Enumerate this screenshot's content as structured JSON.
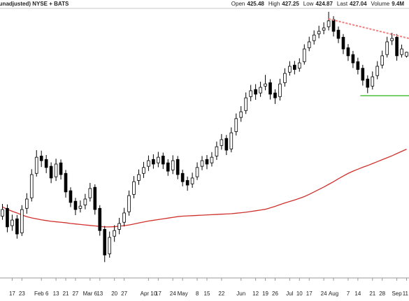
{
  "chart_data": {
    "type": "candlestick",
    "source_note": "(unadjusted) NYSE + BATS",
    "stats": [
      {
        "label": "Open",
        "value": "425.48"
      },
      {
        "label": "High",
        "value": "427.25"
      },
      {
        "label": "Low",
        "value": "424.87"
      },
      {
        "label": "Last",
        "value": "427.04"
      },
      {
        "label": "Volume",
        "value": "9.4M"
      }
    ],
    "categories": [
      null,
      null,
      "17",
      null,
      "23",
      null,
      null,
      null,
      "Feb 6",
      null,
      null,
      "13",
      null,
      "21",
      null,
      "27",
      null,
      null,
      "Mar 6",
      null,
      "13",
      null,
      null,
      "20",
      null,
      "27",
      null,
      null,
      null,
      null,
      "Apr 10",
      null,
      "17",
      null,
      null,
      "24",
      null,
      "May",
      null,
      null,
      "8",
      null,
      "15",
      null,
      null,
      "22",
      null,
      null,
      null,
      "Jun",
      null,
      null,
      "12",
      null,
      "19",
      null,
      "26",
      null,
      null,
      "Jul",
      null,
      "10",
      null,
      "17",
      null,
      null,
      "24",
      null,
      "Aug",
      null,
      null,
      "7",
      null,
      "14",
      null,
      null,
      "21",
      null,
      "28",
      null,
      null,
      "Sep",
      null,
      "11"
    ],
    "candles": {
      "up_color": "#ffffff",
      "down_color": "#000000",
      "edge_color": "#000000",
      "open": [
        360.0,
        363.2,
        356.1,
        358.9,
        353.2,
        363.2,
        367.5,
        377.5,
        384.6,
        383.2,
        380.4,
        376.1,
        381.8,
        377.5,
        370.4,
        366.1,
        363.2,
        364.6,
        367.5,
        371.8,
        363.2,
        354.6,
        344.6,
        351.8,
        354.6,
        357.5,
        361.8,
        368.9,
        374.6,
        377.5,
        380.4,
        383.2,
        381.8,
        384.6,
        381.8,
        378.9,
        383.2,
        377.5,
        374.6,
        373.2,
        376.1,
        380.4,
        383.2,
        381.8,
        384.6,
        388.9,
        391.8,
        387.5,
        394.6,
        400.4,
        403.2,
        408.9,
        411.8,
        410.4,
        413.2,
        414.6,
        410.4,
        408.9,
        414.6,
        418.9,
        421.8,
        420.5,
        423.2,
        428.9,
        431.8,
        434.6,
        436.1,
        437.5,
        440.4,
        436.1,
        433.2,
        428.9,
        426.1,
        423.2,
        420.5,
        416.1,
        413.2,
        417.5,
        421.8,
        426.1,
        431.8,
        433.2,
        426.1,
        425.48
      ],
      "high": [
        365.0,
        364.8,
        360.6,
        360.5,
        364.5,
        369.4,
        379.2,
        387.0,
        386.8,
        385.0,
        382.0,
        383.5,
        383.2,
        378.9,
        371.8,
        367.5,
        366.4,
        369.1,
        373.6,
        373.0,
        364.5,
        356.0,
        353.7,
        356.3,
        359.3,
        363.4,
        370.5,
        376.4,
        379.1,
        382.2,
        384.8,
        385.3,
        386.3,
        386.0,
        383.3,
        384.9,
        384.6,
        379.0,
        376.2,
        377.8,
        382.0,
        384.6,
        385.0,
        386.2,
        390.5,
        393.6,
        393.2,
        396.3,
        402.0,
        405.0,
        410.6,
        413.7,
        414.0,
        415.0,
        417.8,
        416.0,
        411.9,
        416.2,
        420.5,
        423.4,
        423.5,
        424.6,
        430.3,
        433.4,
        436.0,
        437.9,
        439.3,
        443.6,
        441.8,
        437.6,
        434.5,
        430.4,
        427.6,
        424.8,
        421.9,
        417.6,
        419.2,
        423.4,
        427.7,
        433.4,
        435.0,
        434.5,
        430.2,
        427.25
      ],
      "low": [
        358.5,
        353.4,
        354.0,
        350.8,
        351.9,
        361.0,
        366.0,
        376.2,
        380.1,
        377.6,
        373.5,
        374.4,
        375.0,
        367.6,
        363.7,
        360.4,
        361.5,
        362.8,
        366.0,
        360.6,
        352.0,
        341.2,
        343.0,
        349.5,
        352.6,
        355.8,
        360.2,
        367.3,
        372.8,
        375.6,
        378.5,
        379.4,
        380.0,
        379.3,
        376.5,
        377.2,
        375.1,
        372.2,
        370.4,
        371.6,
        374.8,
        378.8,
        379.2,
        380.3,
        383.0,
        387.2,
        385.0,
        386.1,
        393.0,
        398.6,
        401.8,
        407.0,
        407.6,
        408.8,
        411.5,
        407.7,
        405.9,
        407.3,
        413.0,
        417.5,
        418.0,
        419.1,
        422.0,
        427.5,
        430.2,
        432.8,
        434.4,
        436.0,
        433.5,
        430.8,
        426.3,
        423.5,
        420.6,
        418.0,
        413.4,
        410.3,
        411.8,
        416.0,
        420.4,
        424.9,
        430.0,
        423.6,
        424.9,
        424.87
      ],
      "close": [
        362.7,
        355.6,
        358.4,
        352.7,
        362.7,
        367.0,
        377.0,
        384.1,
        382.7,
        379.9,
        375.6,
        381.3,
        377.0,
        369.9,
        365.6,
        362.7,
        364.1,
        367.0,
        371.3,
        362.7,
        354.1,
        344.1,
        351.3,
        354.1,
        357.0,
        361.3,
        368.4,
        374.1,
        377.0,
        379.9,
        382.7,
        381.3,
        384.1,
        381.3,
        378.4,
        382.7,
        377.0,
        374.1,
        372.7,
        375.6,
        379.9,
        382.7,
        381.3,
        384.1,
        388.4,
        391.3,
        387.0,
        394.1,
        399.9,
        402.7,
        408.4,
        411.3,
        409.9,
        412.7,
        414.1,
        409.9,
        408.4,
        414.1,
        418.4,
        421.3,
        420.0,
        422.7,
        428.4,
        431.3,
        434.1,
        435.6,
        437.0,
        439.9,
        435.6,
        432.7,
        428.4,
        425.6,
        422.7,
        420.0,
        415.6,
        412.7,
        417.0,
        421.3,
        425.6,
        431.3,
        432.7,
        425.6,
        428.4,
        427.04
      ]
    },
    "sma": {
      "color": "#d0312d",
      "values": [
        363.8,
        362.8,
        362.0,
        361.3,
        360.5,
        359.8,
        359.3,
        358.9,
        358.5,
        358.2,
        357.9,
        357.7,
        357.5,
        357.3,
        357.0,
        356.8,
        356.6,
        356.4,
        356.2,
        356.0,
        355.8,
        355.6,
        355.6,
        355.7,
        355.9,
        356.1,
        356.4,
        356.8,
        357.2,
        357.6,
        358.0,
        358.3,
        358.6,
        358.9,
        359.2,
        359.5,
        359.8,
        360.0,
        360.1,
        360.2,
        360.3,
        360.4,
        360.5,
        360.6,
        360.7,
        360.8,
        360.9,
        361.0,
        361.2,
        361.4,
        361.6,
        361.9,
        362.2,
        362.5,
        362.8,
        363.4,
        364.0,
        364.7,
        365.4,
        366.0,
        366.6,
        367.3,
        368.0,
        368.9,
        369.9,
        370.9,
        371.9,
        373.0,
        374.1,
        375.3,
        376.4,
        377.5,
        378.4,
        379.2,
        380.0,
        380.7,
        381.5,
        382.3,
        383.1,
        383.9,
        384.7,
        385.6,
        386.5,
        387.4
      ]
    },
    "trendlines": [
      {
        "color": "#f08080",
        "dashed": true,
        "x": [
          67,
          83.5
        ],
        "values": [
          440.7,
          432.7
        ]
      },
      {
        "color": "#7ccf6e",
        "dashed": false,
        "x": [
          73.5,
          83.5
        ],
        "values": [
          409.3,
          409.3
        ]
      }
    ],
    "ylim": [
      335,
      445
    ]
  }
}
